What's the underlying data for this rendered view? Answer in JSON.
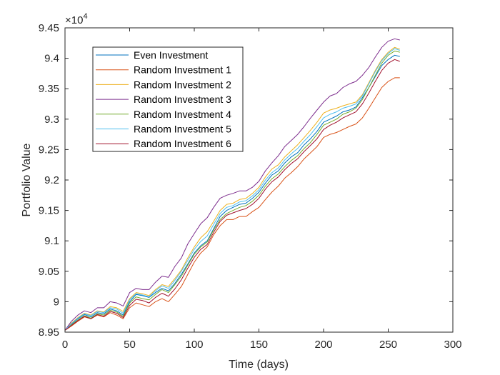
{
  "chart_data": {
    "type": "line",
    "xlabel": "Time (days)",
    "ylabel": "Portfolio Value",
    "exponent_base": "×10",
    "exponent_power": "4",
    "xlim": [
      0,
      300
    ],
    "ylim": [
      8.95,
      9.45
    ],
    "y_scale": 10000,
    "xticks": [
      0,
      50,
      100,
      150,
      200,
      250,
      300
    ],
    "yticks": [
      8.95,
      9,
      9.05,
      9.1,
      9.15,
      9.2,
      9.25,
      9.3,
      9.35,
      9.4,
      9.45
    ],
    "grid": false,
    "legend_position": "top-left",
    "series": [
      {
        "name": "Even Investment",
        "color": "#0072BD",
        "x": [
          0,
          5,
          10,
          15,
          20,
          25,
          30,
          35,
          40,
          45,
          50,
          55,
          60,
          65,
          70,
          75,
          80,
          85,
          90,
          95,
          100,
          105,
          110,
          115,
          120,
          125,
          130,
          135,
          140,
          145,
          150,
          155,
          160,
          165,
          170,
          175,
          180,
          185,
          190,
          195,
          200,
          205,
          210,
          215,
          220,
          225,
          230,
          235,
          240,
          245,
          250,
          255,
          259
        ],
        "y": [
          8.953,
          8.963,
          8.972,
          8.979,
          8.975,
          8.982,
          8.98,
          8.988,
          8.985,
          8.978,
          9.0,
          9.012,
          9.01,
          9.007,
          9.015,
          9.022,
          9.018,
          9.03,
          9.045,
          9.062,
          9.08,
          9.092,
          9.1,
          9.12,
          9.14,
          9.15,
          9.155,
          9.16,
          9.162,
          9.17,
          9.18,
          9.195,
          9.208,
          9.215,
          9.228,
          9.238,
          9.245,
          9.258,
          9.268,
          9.28,
          9.295,
          9.3,
          9.305,
          9.312,
          9.315,
          9.32,
          9.335,
          9.352,
          9.37,
          9.388,
          9.398,
          9.405,
          9.403
        ]
      },
      {
        "name": "Random Investment 1",
        "color": "#D95319",
        "x": [
          0,
          5,
          10,
          15,
          20,
          25,
          30,
          35,
          40,
          45,
          50,
          55,
          60,
          65,
          70,
          75,
          80,
          85,
          90,
          95,
          100,
          105,
          110,
          115,
          120,
          125,
          130,
          135,
          140,
          145,
          150,
          155,
          160,
          165,
          170,
          175,
          180,
          185,
          190,
          195,
          200,
          205,
          210,
          215,
          220,
          225,
          230,
          235,
          240,
          245,
          250,
          255,
          259
        ],
        "y": [
          8.953,
          8.96,
          8.968,
          8.975,
          8.972,
          8.978,
          8.975,
          8.982,
          8.978,
          8.972,
          8.99,
          8.998,
          8.995,
          8.992,
          9.0,
          9.005,
          9.0,
          9.012,
          9.025,
          9.045,
          9.065,
          9.08,
          9.09,
          9.11,
          9.125,
          9.135,
          9.135,
          9.14,
          9.14,
          9.148,
          9.155,
          9.168,
          9.18,
          9.19,
          9.203,
          9.212,
          9.222,
          9.235,
          9.245,
          9.255,
          9.27,
          9.275,
          9.278,
          9.283,
          9.288,
          9.292,
          9.302,
          9.318,
          9.335,
          9.352,
          9.362,
          9.368,
          9.368
        ]
      },
      {
        "name": "Random Investment 2",
        "color": "#EDB120",
        "x": [
          0,
          5,
          10,
          15,
          20,
          25,
          30,
          35,
          40,
          45,
          50,
          55,
          60,
          65,
          70,
          75,
          80,
          85,
          90,
          95,
          100,
          105,
          110,
          115,
          120,
          125,
          130,
          135,
          140,
          145,
          150,
          155,
          160,
          165,
          170,
          175,
          180,
          185,
          190,
          195,
          200,
          205,
          210,
          215,
          220,
          225,
          230,
          235,
          240,
          245,
          250,
          255,
          259
        ],
        "y": [
          8.953,
          8.965,
          8.974,
          8.981,
          8.978,
          8.985,
          8.983,
          8.992,
          8.99,
          8.984,
          9.005,
          9.015,
          9.013,
          9.01,
          9.02,
          9.028,
          9.025,
          9.038,
          9.052,
          9.072,
          9.09,
          9.105,
          9.115,
          9.132,
          9.15,
          9.16,
          9.162,
          9.168,
          9.17,
          9.178,
          9.188,
          9.205,
          9.218,
          9.225,
          9.238,
          9.248,
          9.258,
          9.27,
          9.282,
          9.295,
          9.31,
          9.315,
          9.318,
          9.322,
          9.325,
          9.328,
          9.34,
          9.36,
          9.38,
          9.398,
          9.41,
          9.418,
          9.415
        ]
      },
      {
        "name": "Random Investment 3",
        "color": "#7E2F8E",
        "x": [
          0,
          5,
          10,
          15,
          20,
          25,
          30,
          35,
          40,
          45,
          50,
          55,
          60,
          65,
          70,
          75,
          80,
          85,
          90,
          95,
          100,
          105,
          110,
          115,
          120,
          125,
          130,
          135,
          140,
          145,
          150,
          155,
          160,
          165,
          170,
          175,
          180,
          185,
          190,
          195,
          200,
          205,
          210,
          215,
          220,
          225,
          230,
          235,
          240,
          245,
          250,
          255,
          259
        ],
        "y": [
          8.953,
          8.968,
          8.978,
          8.985,
          8.982,
          8.99,
          8.99,
          9.0,
          8.998,
          8.993,
          9.015,
          9.022,
          9.02,
          9.02,
          9.032,
          9.042,
          9.04,
          9.058,
          9.072,
          9.095,
          9.112,
          9.128,
          9.138,
          9.155,
          9.17,
          9.175,
          9.178,
          9.182,
          9.182,
          9.188,
          9.198,
          9.215,
          9.228,
          9.24,
          9.255,
          9.265,
          9.275,
          9.288,
          9.302,
          9.315,
          9.328,
          9.338,
          9.342,
          9.352,
          9.358,
          9.362,
          9.372,
          9.385,
          9.402,
          9.418,
          9.428,
          9.432,
          9.43
        ]
      },
      {
        "name": "Random Investment 4",
        "color": "#77AC30",
        "x": [
          0,
          5,
          10,
          15,
          20,
          25,
          30,
          35,
          40,
          45,
          50,
          55,
          60,
          65,
          70,
          75,
          80,
          85,
          90,
          95,
          100,
          105,
          110,
          115,
          120,
          125,
          130,
          135,
          140,
          145,
          150,
          155,
          160,
          165,
          170,
          175,
          180,
          185,
          190,
          195,
          200,
          205,
          210,
          215,
          220,
          225,
          230,
          235,
          240,
          245,
          250,
          255,
          259
        ],
        "y": [
          8.953,
          8.962,
          8.97,
          8.977,
          8.973,
          8.98,
          8.978,
          8.986,
          8.983,
          8.976,
          8.998,
          9.008,
          9.005,
          9.003,
          9.012,
          9.02,
          9.015,
          9.028,
          9.042,
          9.06,
          9.078,
          9.09,
          9.098,
          9.118,
          9.135,
          9.145,
          9.15,
          9.155,
          9.158,
          9.165,
          9.175,
          9.19,
          9.202,
          9.21,
          9.222,
          9.232,
          9.24,
          9.252,
          9.262,
          9.275,
          9.29,
          9.295,
          9.3,
          9.308,
          9.312,
          9.318,
          9.332,
          9.352,
          9.372,
          9.392,
          9.405,
          9.412,
          9.41
        ]
      },
      {
        "name": "Random Investment 5",
        "color": "#4DBEEE",
        "x": [
          0,
          5,
          10,
          15,
          20,
          25,
          30,
          35,
          40,
          45,
          50,
          55,
          60,
          65,
          70,
          75,
          80,
          85,
          90,
          95,
          100,
          105,
          110,
          115,
          120,
          125,
          130,
          135,
          140,
          145,
          150,
          155,
          160,
          165,
          170,
          175,
          180,
          185,
          190,
          195,
          200,
          205,
          210,
          215,
          220,
          225,
          230,
          235,
          240,
          245,
          250,
          255,
          259
        ],
        "y": [
          8.953,
          8.964,
          8.973,
          8.98,
          8.977,
          8.984,
          8.982,
          8.99,
          8.988,
          8.981,
          9.003,
          9.013,
          9.011,
          9.008,
          9.018,
          9.026,
          9.022,
          9.035,
          9.05,
          9.068,
          9.086,
          9.099,
          9.108,
          9.127,
          9.145,
          9.155,
          9.158,
          9.164,
          9.166,
          9.174,
          9.184,
          9.2,
          9.212,
          9.22,
          9.233,
          9.243,
          9.252,
          9.264,
          9.275,
          9.288,
          9.302,
          9.308,
          9.312,
          9.318,
          9.321,
          9.325,
          9.338,
          9.358,
          9.378,
          9.396,
          9.408,
          9.416,
          9.413
        ]
      },
      {
        "name": "Random Investment 6",
        "color": "#A2142F",
        "x": [
          0,
          5,
          10,
          15,
          20,
          25,
          30,
          35,
          40,
          45,
          50,
          55,
          60,
          65,
          70,
          75,
          80,
          85,
          90,
          95,
          100,
          105,
          110,
          115,
          120,
          125,
          130,
          135,
          140,
          145,
          150,
          155,
          160,
          165,
          170,
          175,
          180,
          185,
          190,
          195,
          200,
          205,
          210,
          215,
          220,
          225,
          230,
          235,
          240,
          245,
          250,
          255,
          259
        ],
        "y": [
          8.953,
          8.961,
          8.969,
          8.976,
          8.972,
          8.979,
          8.976,
          8.984,
          8.981,
          8.974,
          8.994,
          9.004,
          9.002,
          8.998,
          9.007,
          9.014,
          9.009,
          9.021,
          9.036,
          9.055,
          9.073,
          9.086,
          9.094,
          9.114,
          9.132,
          9.142,
          9.146,
          9.15,
          9.153,
          9.16,
          9.17,
          9.185,
          9.197,
          9.205,
          9.217,
          9.227,
          9.235,
          9.247,
          9.257,
          9.268,
          9.283,
          9.29,
          9.295,
          9.302,
          9.307,
          9.312,
          9.325,
          9.343,
          9.362,
          9.38,
          9.392,
          9.398,
          9.395
        ]
      }
    ]
  }
}
